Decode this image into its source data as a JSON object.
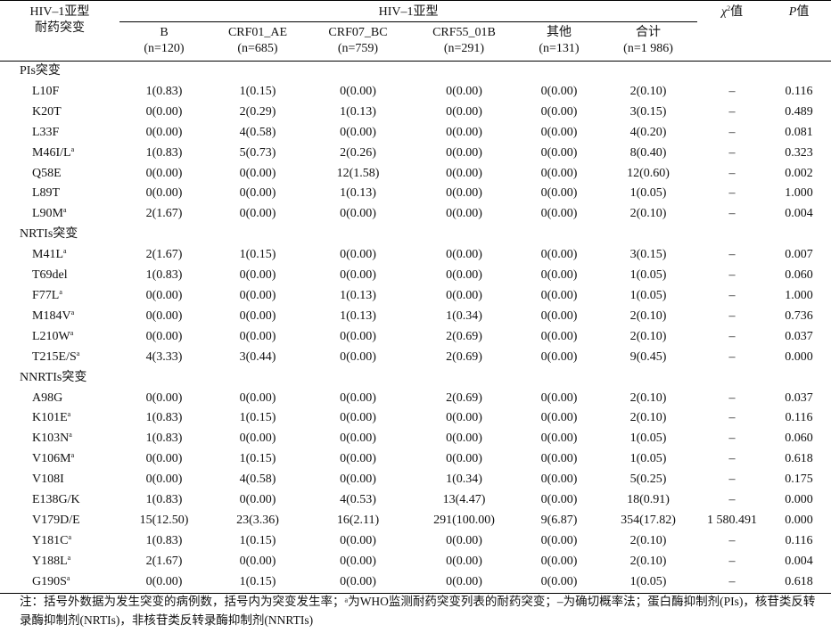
{
  "header": {
    "row_label_line1": "HIV–1亚型",
    "row_label_line2": "耐药突变",
    "group_label": "HIV–1亚型",
    "columns": [
      {
        "name": "B",
        "n": "(n=120)"
      },
      {
        "name": "CRF01_AE",
        "n": "(n=685)"
      },
      {
        "name": "CRF07_BC",
        "n": "(n=759)"
      },
      {
        "name": "CRF55_01B",
        "n": "(n=291)"
      },
      {
        "name": "其他",
        "n": "(n=131)"
      },
      {
        "name": "合计",
        "n": "(n=1 986)"
      }
    ],
    "chi_label": "χ²值",
    "p_label": "P值"
  },
  "sections": [
    {
      "title": "PIs突变",
      "rows": [
        {
          "name": "L10F",
          "sup": "",
          "vals": [
            "1(0.83)",
            "1(0.15)",
            "0(0.00)",
            "0(0.00)",
            "0(0.00)",
            "2(0.10)"
          ],
          "chi": "–",
          "p": "0.116"
        },
        {
          "name": "K20T",
          "sup": "",
          "vals": [
            "0(0.00)",
            "2(0.29)",
            "1(0.13)",
            "0(0.00)",
            "0(0.00)",
            "3(0.15)"
          ],
          "chi": "–",
          "p": "0.489"
        },
        {
          "name": "L33F",
          "sup": "",
          "vals": [
            "0(0.00)",
            "4(0.58)",
            "0(0.00)",
            "0(0.00)",
            "0(0.00)",
            "4(0.20)"
          ],
          "chi": "–",
          "p": "0.081"
        },
        {
          "name": "M46I/L",
          "sup": "a",
          "vals": [
            "1(0.83)",
            "5(0.73)",
            "2(0.26)",
            "0(0.00)",
            "0(0.00)",
            "8(0.40)"
          ],
          "chi": "–",
          "p": "0.323"
        },
        {
          "name": "Q58E",
          "sup": "",
          "vals": [
            "0(0.00)",
            "0(0.00)",
            "12(1.58)",
            "0(0.00)",
            "0(0.00)",
            "12(0.60)"
          ],
          "chi": "–",
          "p": "0.002"
        },
        {
          "name": "L89T",
          "sup": "",
          "vals": [
            "0(0.00)",
            "0(0.00)",
            "1(0.13)",
            "0(0.00)",
            "0(0.00)",
            "1(0.05)"
          ],
          "chi": "–",
          "p": "1.000"
        },
        {
          "name": "L90M",
          "sup": "a",
          "vals": [
            "2(1.67)",
            "0(0.00)",
            "0(0.00)",
            "0(0.00)",
            "0(0.00)",
            "2(0.10)"
          ],
          "chi": "–",
          "p": "0.004"
        }
      ]
    },
    {
      "title": "NRTIs突变",
      "rows": [
        {
          "name": "M41L",
          "sup": "a",
          "vals": [
            "2(1.67)",
            "1(0.15)",
            "0(0.00)",
            "0(0.00)",
            "0(0.00)",
            "3(0.15)"
          ],
          "chi": "–",
          "p": "0.007"
        },
        {
          "name": "T69del",
          "sup": "",
          "vals": [
            "1(0.83)",
            "0(0.00)",
            "0(0.00)",
            "0(0.00)",
            "0(0.00)",
            "1(0.05)"
          ],
          "chi": "–",
          "p": "0.060"
        },
        {
          "name": "F77L",
          "sup": "a",
          "vals": [
            "0(0.00)",
            "0(0.00)",
            "1(0.13)",
            "0(0.00)",
            "0(0.00)",
            "1(0.05)"
          ],
          "chi": "–",
          "p": "1.000"
        },
        {
          "name": "M184V",
          "sup": "a",
          "vals": [
            "0(0.00)",
            "0(0.00)",
            "1(0.13)",
            "1(0.34)",
            "0(0.00)",
            "2(0.10)"
          ],
          "chi": "–",
          "p": "0.736"
        },
        {
          "name": "L210W",
          "sup": "a",
          "vals": [
            "0(0.00)",
            "0(0.00)",
            "0(0.00)",
            "2(0.69)",
            "0(0.00)",
            "2(0.10)"
          ],
          "chi": "–",
          "p": "0.037"
        },
        {
          "name": "T215E/S",
          "sup": "a",
          "vals": [
            "4(3.33)",
            "3(0.44)",
            "0(0.00)",
            "2(0.69)",
            "0(0.00)",
            "9(0.45)"
          ],
          "chi": "–",
          "p": "0.000"
        }
      ]
    },
    {
      "title": "NNRTIs突变",
      "rows": [
        {
          "name": "A98G",
          "sup": "",
          "vals": [
            "0(0.00)",
            "0(0.00)",
            "0(0.00)",
            "2(0.69)",
            "0(0.00)",
            "2(0.10)"
          ],
          "chi": "–",
          "p": "0.037"
        },
        {
          "name": "K101E",
          "sup": "a",
          "vals": [
            "1(0.83)",
            "1(0.15)",
            "0(0.00)",
            "0(0.00)",
            "0(0.00)",
            "2(0.10)"
          ],
          "chi": "–",
          "p": "0.116"
        },
        {
          "name": "K103N",
          "sup": "a",
          "vals": [
            "1(0.83)",
            "0(0.00)",
            "0(0.00)",
            "0(0.00)",
            "0(0.00)",
            "1(0.05)"
          ],
          "chi": "–",
          "p": "0.060"
        },
        {
          "name": "V106M",
          "sup": "a",
          "vals": [
            "0(0.00)",
            "1(0.15)",
            "0(0.00)",
            "0(0.00)",
            "0(0.00)",
            "1(0.05)"
          ],
          "chi": "–",
          "p": "0.618"
        },
        {
          "name": "V108I",
          "sup": "",
          "vals": [
            "0(0.00)",
            "4(0.58)",
            "0(0.00)",
            "1(0.34)",
            "0(0.00)",
            "5(0.25)"
          ],
          "chi": "–",
          "p": "0.175"
        },
        {
          "name": "E138G/K",
          "sup": "",
          "vals": [
            "1(0.83)",
            "0(0.00)",
            "4(0.53)",
            "13(4.47)",
            "0(0.00)",
            "18(0.91)"
          ],
          "chi": "–",
          "p": "0.000"
        },
        {
          "name": "V179D/E",
          "sup": "",
          "vals": [
            "15(12.50)",
            "23(3.36)",
            "16(2.11)",
            "291(100.00)",
            "9(6.87)",
            "354(17.82)"
          ],
          "chi": "1 580.491",
          "p": "0.000"
        },
        {
          "name": "Y181C",
          "sup": "a",
          "vals": [
            "1(0.83)",
            "1(0.15)",
            "0(0.00)",
            "0(0.00)",
            "0(0.00)",
            "2(0.10)"
          ],
          "chi": "–",
          "p": "0.116"
        },
        {
          "name": "Y188L",
          "sup": "a",
          "vals": [
            "2(1.67)",
            "0(0.00)",
            "0(0.00)",
            "0(0.00)",
            "0(0.00)",
            "2(0.10)"
          ],
          "chi": "–",
          "p": "0.004"
        },
        {
          "name": "G190S",
          "sup": "a",
          "vals": [
            "0(0.00)",
            "1(0.15)",
            "0(0.00)",
            "0(0.00)",
            "0(0.00)",
            "1(0.05)"
          ],
          "chi": "–",
          "p": "0.618"
        }
      ]
    }
  ],
  "footnote": "注：括号外数据为发生突变的病例数，括号内为突变发生率；ᵃ为WHO监测耐药突变列表的耐药突变；–为确切概率法；蛋白酶抑制剂(PIs)，核苷类反转录酶抑制剂(NRTIs)，非核苷类反转录酶抑制剂(NNRTIs)"
}
